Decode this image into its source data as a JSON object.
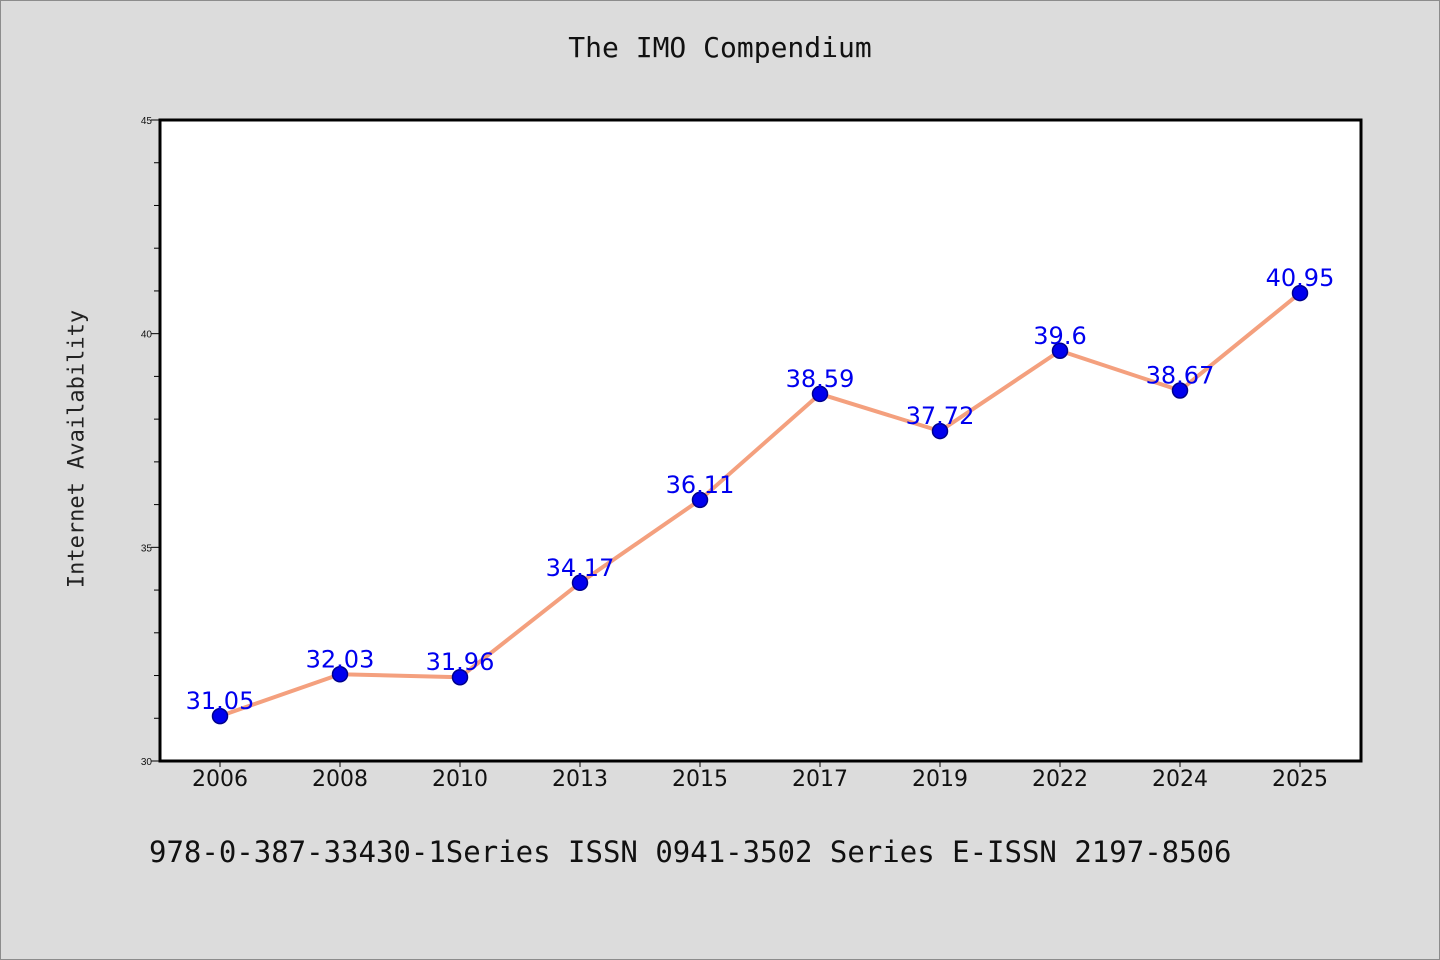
{
  "title": "The IMO Compendium",
  "footer": "978-0-387-33430-1Series ISSN 0941-3502 Series E-ISSN 2197-8506",
  "chart_data": {
    "type": "line",
    "title": "The IMO Compendium",
    "xlabel": "",
    "ylabel": "Internet Availability",
    "categories": [
      "2006",
      "2008",
      "2010",
      "2013",
      "2015",
      "2017",
      "2019",
      "2022",
      "2024",
      "2025"
    ],
    "series": [
      {
        "values": [
          31.05,
          32.03,
          31.96,
          34.17,
          36.11,
          38.59,
          37.72,
          39.6,
          38.67,
          40.95
        ],
        "data_labels": [
          "31.05",
          "32.03",
          "31.96",
          "34.17",
          "36.11",
          "38.59",
          "37.72",
          "39.6",
          "38.67",
          "40.95"
        ]
      }
    ],
    "ylim": [
      30,
      45
    ],
    "y_ticks": [
      30,
      35,
      40,
      45
    ],
    "y_minor_step": 1,
    "grid": false,
    "legend": "none",
    "colors": {
      "line": "#f4a07e",
      "marker": "#0000ee",
      "marker_edge": "#00008b",
      "data_label": "#0000ee",
      "plot_background": "#ffffff",
      "page_background": "#dcdcdc"
    }
  }
}
